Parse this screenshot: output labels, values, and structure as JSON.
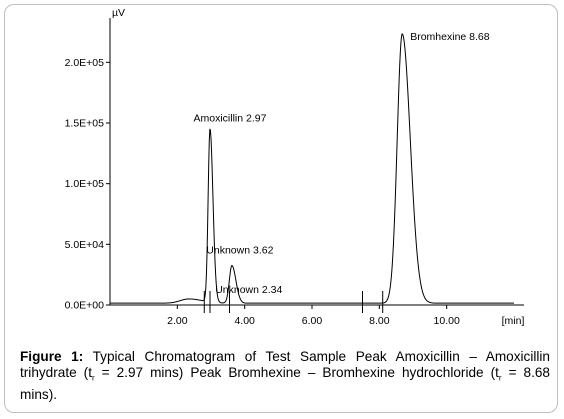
{
  "chart_data": {
    "type": "line",
    "ylabel": "µV",
    "xlabel": "[min]",
    "xlim": [
      0.0,
      12.0
    ],
    "ylim": [
      0,
      225000
    ],
    "x_ticks": [
      2.0,
      4.0,
      6.0,
      8.0,
      10.0
    ],
    "x_tick_labels": [
      "2.00",
      "4.00",
      "6.00",
      "8.00",
      "10.00"
    ],
    "y_ticks": [
      0,
      50000,
      100000,
      150000,
      200000
    ],
    "y_tick_labels": [
      "0.0E+00",
      "5.0E+04",
      "1.0E+05",
      "1.5E+05",
      "2.0E+05"
    ],
    "grid": false,
    "baseline": 1500,
    "peaks": [
      {
        "name": "Unknown",
        "rt": 2.34,
        "label": "Unknown 2.34",
        "height": 3500,
        "sigma": 0.25
      },
      {
        "name": "Amoxicillin",
        "rt": 2.97,
        "label": "Amoxicillin 2.97",
        "height": 143000,
        "sigma": 0.055
      },
      {
        "name": "Unknown",
        "rt": 3.62,
        "label": "Unknown 3.62",
        "height": 31000,
        "sigma": 0.075
      },
      {
        "name": "Bromhexine",
        "rt": 8.68,
        "label": "Bromhexine 8.68",
        "height": 222000,
        "sigma": 0.15
      }
    ],
    "event_markers_min": [
      2.8,
      2.97,
      3.55,
      7.5,
      8.1
    ],
    "series": [
      {
        "x": [
          0.0,
          1.0,
          2.0,
          2.34,
          2.6,
          2.8,
          2.9,
          2.97,
          3.05,
          3.2,
          3.4,
          3.55,
          3.62,
          3.7,
          3.9,
          4.3,
          5.0,
          6.0,
          7.0,
          8.0,
          8.3,
          8.5,
          8.6,
          8.68,
          8.8,
          9.0,
          9.3,
          9.8,
          10.5,
          12.0
        ],
        "y": [
          1500,
          1500,
          2500,
          5000,
          8000,
          25000,
          95000,
          143000,
          100000,
          20000,
          8000,
          23000,
          31000,
          24000,
          6000,
          3500,
          3000,
          2000,
          1600,
          2500,
          30000,
          130000,
          200000,
          222000,
          205000,
          130000,
          50000,
          12000,
          3500,
          1600
        ]
      }
    ]
  },
  "caption": {
    "label": "Figure 1:",
    "text_part1": " Typical Chromatogram of Test Sample Peak Amoxicillin – Amoxicillin trihydrate (t",
    "sub1": "r",
    "text_part2": " = 2.97 mins) Peak Bromhexine – Bromhexine hydrochloride (t",
    "sub2": "r",
    "text_part3": " = 8.68 mins)."
  }
}
